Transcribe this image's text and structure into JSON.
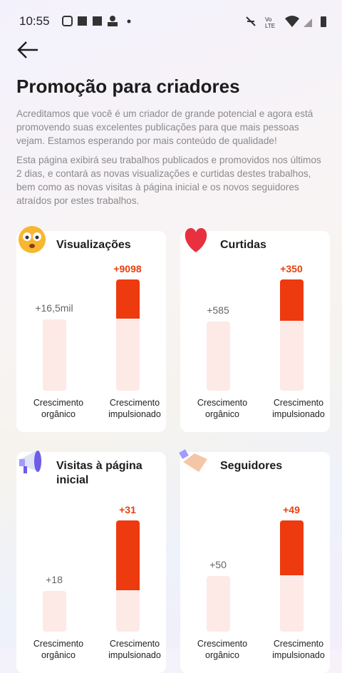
{
  "status_bar": {
    "time": "10:55"
  },
  "header": {
    "title": "Promoção para criadores",
    "paragraphs": [
      "Acreditamos que você é um criador de grande potencial e agora está promovendo suas excelentes publicações para que mais pessoas vejam. Estamos esperando por mais conteúdo de qualidade!",
      "Esta página exibirá seu trabalhos publicados e promovidos nos últimos 2 dias, e contará as novas visualizações e curtidas destes trabalhos, bem como as novas visitas à página inicial e os novos seguidores atraídos por estes trabalhos."
    ]
  },
  "cards": [
    {
      "title": "Visualizações",
      "categories": [
        "Crescimento orgânico",
        "Crescimento impulsionado"
      ],
      "organic": {
        "value": 16500,
        "label": "+16,5mil"
      },
      "boosted": {
        "value": 9098,
        "label": "+9098"
      }
    },
    {
      "title": "Curtidas",
      "categories": [
        "Crescimento orgânico",
        "Crescimento impulsionado"
      ],
      "organic": {
        "value": 585,
        "label": "+585"
      },
      "boosted": {
        "value": 350,
        "label": "+350"
      }
    },
    {
      "title": "Visitas à página inicial",
      "categories": [
        "Crescimento orgânico",
        "Crescimento impulsionado"
      ],
      "organic": {
        "value": 18,
        "label": "+18"
      },
      "boosted": {
        "value": 31,
        "label": "+31"
      }
    },
    {
      "title": "Seguidores",
      "categories": [
        "Crescimento orgânico",
        "Crescimento impulsionado"
      ],
      "organic": {
        "value": 50,
        "label": "+50"
      },
      "boosted": {
        "value": 49,
        "label": "+49"
      }
    }
  ]
}
